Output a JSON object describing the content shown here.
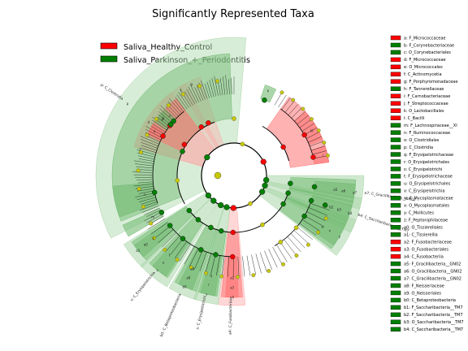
{
  "chart_data": {
    "type": "cladogram",
    "title": "Significantly Represented Taxa",
    "colors": {
      "Saliva_Healthy_Control": "#ff0000",
      "Saliva_Parkinson_+_Periodontitis": "#008000",
      "nonsignificant_node": "#c8c800"
    },
    "legend": {
      "placement": "top-left",
      "entries": [
        {
          "name": "Saliva_Healthy_Control",
          "color": "#ff0000"
        },
        {
          "name": "Saliva_Parkinson_+_Periodontitis",
          "color": "#008000"
        }
      ]
    },
    "taxa": [
      {
        "key": "a",
        "label": "a: F_Micrococcaceae",
        "group": "Saliva_Healthy_Control"
      },
      {
        "key": "b",
        "label": "b: F_Corynebacteriaceae",
        "group": "Saliva_Parkinson_+_Periodontitis"
      },
      {
        "key": "c",
        "label": "c: O_Corynebacteriales",
        "group": "Saliva_Parkinson_+_Periodontitis"
      },
      {
        "key": "d",
        "label": "d: F_Micrococcaceae",
        "group": "Saliva_Healthy_Control"
      },
      {
        "key": "e",
        "label": "e: O_Micrococcales",
        "group": "Saliva_Healthy_Control"
      },
      {
        "key": "f",
        "label": "f: C_Actinomycetia",
        "group": "Saliva_Healthy_Control"
      },
      {
        "key": "g",
        "label": "g: F_Porphyromonadaceae",
        "group": "Saliva_Healthy_Control"
      },
      {
        "key": "h",
        "label": "h: F_Tannerellaceae",
        "group": "Saliva_Parkinson_+_Periodontitis"
      },
      {
        "key": "i",
        "label": "i: F_Carnobacteriaceae",
        "group": "Saliva_Healthy_Control"
      },
      {
        "key": "j",
        "label": "j: F_Streptococcaceae",
        "group": "Saliva_Healthy_Control"
      },
      {
        "key": "k",
        "label": "k: O_Lactobacillales",
        "group": "Saliva_Healthy_Control"
      },
      {
        "key": "l",
        "label": "l: C_Bacilli",
        "group": "Saliva_Healthy_Control"
      },
      {
        "key": "m",
        "label": "m: F_Lachnospiraceae__XI",
        "group": "Saliva_Parkinson_+_Periodontitis"
      },
      {
        "key": "n",
        "label": "n: F_Ruminococcaceae",
        "group": "Saliva_Parkinson_+_Periodontitis"
      },
      {
        "key": "o",
        "label": "o: O_Clostridiales",
        "group": "Saliva_Parkinson_+_Periodontitis"
      },
      {
        "key": "p",
        "label": "p: C_Clostridia",
        "group": "Saliva_Parkinson_+_Periodontitis"
      },
      {
        "key": "q",
        "label": "q: F_Erysipelotrichaceae",
        "group": "Saliva_Parkinson_+_Periodontitis"
      },
      {
        "key": "r",
        "label": "r: O_Erysipelotrichales",
        "group": "Saliva_Parkinson_+_Periodontitis"
      },
      {
        "key": "s",
        "label": "s: C_Erysipelotrichi",
        "group": "Saliva_Parkinson_+_Periodontitis"
      },
      {
        "key": "t",
        "label": "t: F_Erysipelotrichaceae",
        "group": "Saliva_Parkinson_+_Periodontitis"
      },
      {
        "key": "u",
        "label": "u: O_Erysipelotrichales",
        "group": "Saliva_Parkinson_+_Periodontitis"
      },
      {
        "key": "v",
        "label": "v: C_Erysipelotrichia",
        "group": "Saliva_Parkinson_+_Periodontitis"
      },
      {
        "key": "w",
        "label": "w: F_Mycoplasmataceae",
        "group": "Saliva_Parkinson_+_Periodontitis"
      },
      {
        "key": "x",
        "label": "x: O_Mycoplasmatales",
        "group": "Saliva_Parkinson_+_Periodontitis"
      },
      {
        "key": "y",
        "label": "y: C_Mollicutes",
        "group": "Saliva_Parkinson_+_Periodontitis"
      },
      {
        "key": "z",
        "label": "z: F_Peptoniphilaceae",
        "group": "Saliva_Parkinson_+_Periodontitis"
      },
      {
        "key": "a0",
        "label": "a0: O_Tissierellales",
        "group": "Saliva_Parkinson_+_Periodontitis"
      },
      {
        "key": "a1",
        "label": "a1: C_Tissierellia",
        "group": "Saliva_Parkinson_+_Periodontitis"
      },
      {
        "key": "a2",
        "label": "a2: F_Fusobacteriaceae",
        "group": "Saliva_Healthy_Control"
      },
      {
        "key": "a3",
        "label": "a3: O_Fusobacteriales",
        "group": "Saliva_Healthy_Control"
      },
      {
        "key": "a4",
        "label": "a4: C_Fusobacteriia",
        "group": "Saliva_Healthy_Control"
      },
      {
        "key": "a5",
        "label": "a5: F_Gracilibacteria__GN02",
        "group": "Saliva_Parkinson_+_Periodontitis"
      },
      {
        "key": "a6",
        "label": "a6: O_Gracilibacteria__GN02",
        "group": "Saliva_Parkinson_+_Periodontitis"
      },
      {
        "key": "a7",
        "label": "a7: C_Gracilibacteria__GN02",
        "group": "Saliva_Parkinson_+_Periodontitis"
      },
      {
        "key": "a8",
        "label": "a8: F_Neisseriaceae",
        "group": "Saliva_Parkinson_+_Periodontitis"
      },
      {
        "key": "a9",
        "label": "a9: O_Neisseriales",
        "group": "Saliva_Parkinson_+_Periodontitis"
      },
      {
        "key": "b0",
        "label": "b0: C_Betaproteobacteria",
        "group": "Saliva_Parkinson_+_Periodontitis"
      },
      {
        "key": "b1",
        "label": "b1: F_Saccharibacteria__TM7",
        "group": "Saliva_Parkinson_+_Periodontitis"
      },
      {
        "key": "b2",
        "label": "b2: F_Saccharibacteria__TM7",
        "group": "Saliva_Parkinson_+_Periodontitis"
      },
      {
        "key": "b3",
        "label": "b3: O_Saccharibacteria__TM7",
        "group": "Saliva_Parkinson_+_Periodontitis"
      },
      {
        "key": "b4",
        "label": "b4: C_Saccharibacteria__TM7",
        "group": "Saliva_Parkinson_+_Periodontitis"
      }
    ],
    "outer_labels": [
      "p",
      "d",
      "f",
      "g",
      "y",
      "b4",
      "a7",
      "b0",
      "a4",
      "s",
      "v",
      "a1"
    ],
    "inner_labels": [
      "a",
      "b",
      "c",
      "e",
      "h",
      "i",
      "j",
      "k",
      "l",
      "m",
      "n",
      "o",
      "q",
      "r",
      "t",
      "u",
      "w",
      "x",
      "z",
      "a0",
      "a2",
      "a3",
      "a5",
      "a6",
      "a8",
      "a9",
      "b1",
      "b2",
      "b3"
    ],
    "radial_labels": [
      "b0: C_Betaproteobacteria",
      "a7: C_Gracilibacteria__GN02",
      "b4: C_Saccharibacteria__TM7",
      "a4: C_Fusobacteriia",
      "p: C_Clostridia",
      "s: C_Erysipelotrichi",
      "v: C_Erysipelotrichia"
    ]
  }
}
